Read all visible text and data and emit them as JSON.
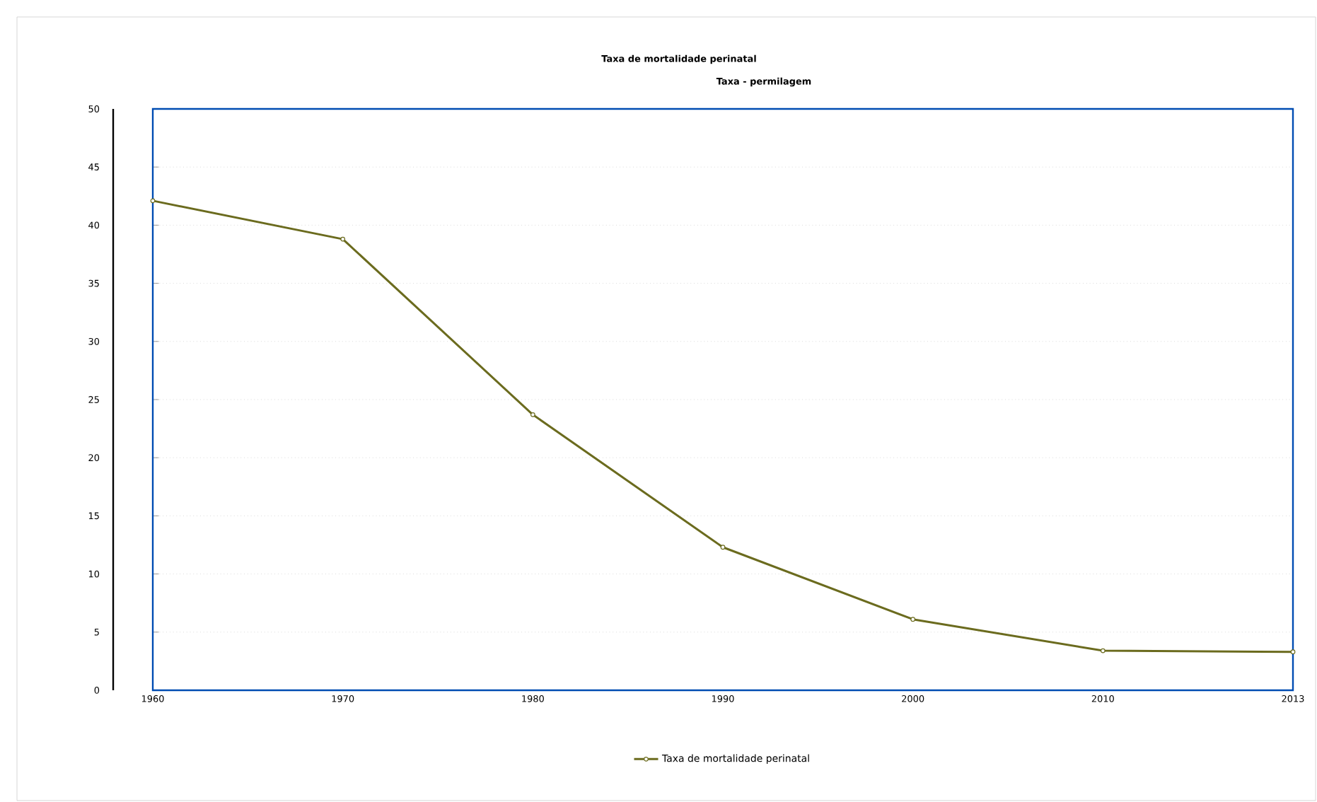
{
  "chart_data": {
    "type": "line",
    "title": "Taxa de mortalidade perinatal",
    "subtitle": "Taxa - permilagem",
    "categories": [
      "1960",
      "1970",
      "1980",
      "1990",
      "2000",
      "2010",
      "2013"
    ],
    "series": [
      {
        "name": "Taxa de mortalidade perinatal",
        "color": "#6b6b1e",
        "values": [
          42.1,
          38.8,
          23.7,
          12.3,
          6.1,
          3.4,
          3.3
        ]
      }
    ],
    "ylim": [
      0,
      50
    ],
    "yticks": [
      0,
      5,
      10,
      15,
      20,
      25,
      30,
      35,
      40,
      45,
      50
    ],
    "grid": "y",
    "legend": "bottom",
    "marker": "circle",
    "line_style": "solid"
  }
}
